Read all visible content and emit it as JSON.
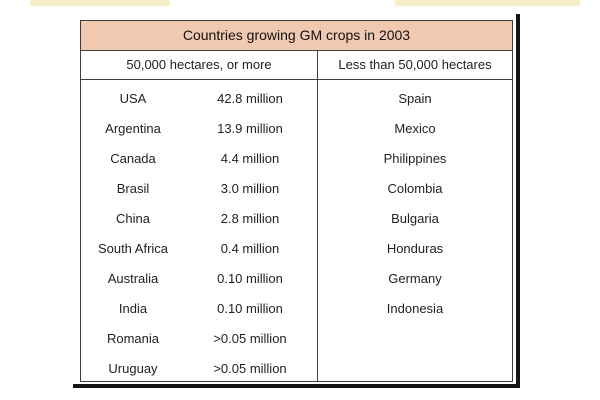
{
  "table": {
    "title": "Countries growing GM crops in 2003",
    "col_left": "50,000 hectares, or more",
    "col_right": "Less than 50,000 hectares",
    "large": [
      {
        "country": "USA",
        "amount": "42.8 million"
      },
      {
        "country": "Argentina",
        "amount": "13.9 million"
      },
      {
        "country": "Canada",
        "amount": "4.4 million"
      },
      {
        "country": "Brasil",
        "amount": "3.0 million"
      },
      {
        "country": "China",
        "amount": "2.8 million"
      },
      {
        "country": "South Africa",
        "amount": "0.4 million"
      },
      {
        "country": "Australia",
        "amount": "0.10 million"
      },
      {
        "country": "India",
        "amount": "0.10 million"
      },
      {
        "country": "Romania",
        "amount": ">0.05 million"
      },
      {
        "country": "Uruguay",
        "amount": ">0.05 million"
      }
    ],
    "small": [
      "Spain",
      "Mexico",
      "Philippines",
      "Colombia",
      "Bulgaria",
      "Honduras",
      "Germany",
      "Indonesia"
    ]
  },
  "colors": {
    "title_background": "#f1c9b1",
    "border": "#3d3d3d",
    "text": "#222222"
  }
}
